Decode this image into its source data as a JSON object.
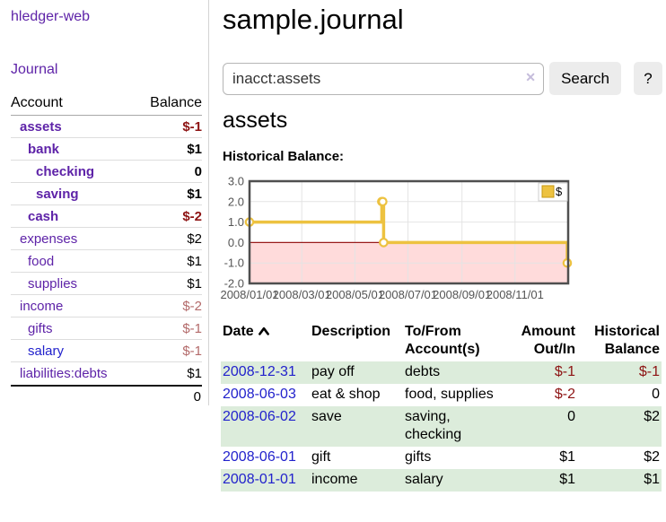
{
  "colors": {
    "purple": "#5e23a8",
    "blue": "#2222cc",
    "neg_strong": "#8d1313",
    "neg_dim": "#b36a6a",
    "row_green": "#dcecdb",
    "button_bg": "#ececec",
    "clear_icon_lavender": "#c5bcdb",
    "chart_line": "#edc240",
    "chart_fill_negative": "#ffdbdb",
    "chart_zero_line": "#991b1b",
    "chart_border": "#4f4f4f",
    "chart_grid": "#e4e4e4",
    "chart_label": "#545454"
  },
  "sidebar": {
    "brand": "hledger-web",
    "nav_journal": "Journal",
    "accounts": {
      "header_account": "Account",
      "header_balance": "Balance",
      "rows": [
        {
          "name": "assets",
          "balance": "$-1",
          "depth": 1,
          "bold": true,
          "balance_style": "neg-strong",
          "link_style": "purple"
        },
        {
          "name": "bank",
          "balance": "$1",
          "depth": 2,
          "bold": true,
          "balance_style": "normal",
          "link_style": "purple"
        },
        {
          "name": "checking",
          "balance": "0",
          "depth": 3,
          "bold": true,
          "balance_style": "normal",
          "link_style": "purple"
        },
        {
          "name": "saving",
          "balance": "$1",
          "depth": 3,
          "bold": true,
          "balance_style": "normal",
          "link_style": "purple"
        },
        {
          "name": "cash",
          "balance": "$-2",
          "depth": 2,
          "bold": true,
          "balance_style": "neg-strong",
          "link_style": "purple"
        },
        {
          "name": "expenses",
          "balance": "$2",
          "depth": 1,
          "bold": false,
          "balance_style": "normal",
          "link_style": "purple"
        },
        {
          "name": "food",
          "balance": "$1",
          "depth": 2,
          "bold": false,
          "balance_style": "normal",
          "link_style": "purple"
        },
        {
          "name": "supplies",
          "balance": "$1",
          "depth": 2,
          "bold": false,
          "balance_style": "normal",
          "link_style": "purple"
        },
        {
          "name": "income",
          "balance": "$-2",
          "depth": 1,
          "bold": false,
          "balance_style": "neg-dim",
          "link_style": "purple"
        },
        {
          "name": "gifts",
          "balance": "$-1",
          "depth": 2,
          "bold": false,
          "balance_style": "neg-dim",
          "link_style": "purple"
        },
        {
          "name": "salary",
          "balance": "$-1",
          "depth": 2,
          "bold": false,
          "balance_style": "neg-dim",
          "link_style": "blue"
        },
        {
          "name": "liabilities:debts",
          "balance": "$1",
          "depth": 1,
          "bold": false,
          "balance_style": "normal",
          "link_style": "purple"
        }
      ],
      "total": "0"
    }
  },
  "main": {
    "title": "sample.journal",
    "search": {
      "value": "inacct:assets",
      "clear_icon": "✕",
      "button_label": "Search",
      "help_label": "?"
    },
    "account_heading": "assets",
    "chart_title": "Historical Balance:"
  },
  "chart_data": {
    "type": "line",
    "step": true,
    "title": "Historical Balance",
    "series": [
      {
        "name": "$",
        "x": [
          "2008-01-01",
          "2008-06-01",
          "2008-06-02",
          "2008-06-03",
          "2008-12-31"
        ],
        "values": [
          1,
          2,
          2,
          0,
          -1
        ]
      }
    ],
    "xaxis": {
      "start": "2008-01-01",
      "end": "2009-01-01",
      "ticks": [
        "2008/01/01",
        "2008/03/01",
        "2008/05/01",
        "2008/07/01",
        "2008/09/01",
        "2008/11/01"
      ]
    },
    "yaxis": {
      "min": -2,
      "max": 3,
      "ticks": [
        "3.0",
        "2.0",
        "1.0",
        "0.0",
        "-1.0",
        "-2.0"
      ]
    },
    "legend": {
      "label": "$",
      "position": "top-right"
    },
    "negative_region_shaded": true,
    "grid": true
  },
  "register": {
    "headers": {
      "date": "Date",
      "description": "Description",
      "accounts_line1": "To/From",
      "accounts_line2": "Account(s)",
      "amount_line1": "Amount",
      "amount_line2": "Out/In",
      "balance_line1": "Historical",
      "balance_line2": "Balance"
    },
    "rows": [
      {
        "date": "2008-12-31",
        "description": "pay off",
        "accounts": "debts",
        "amount": "$-1",
        "amount_style": "neg-strong",
        "balance": "$-1",
        "balance_style": "neg-strong",
        "shaded": true
      },
      {
        "date": "2008-06-03",
        "description": "eat & shop",
        "accounts": "food, supplies",
        "amount": "$-2",
        "amount_style": "neg-strong",
        "balance": "0",
        "balance_style": "normal",
        "shaded": false
      },
      {
        "date": "2008-06-02",
        "description": "save",
        "accounts": "saving, checking",
        "amount": "0",
        "amount_style": "normal",
        "balance": "$2",
        "balance_style": "normal",
        "shaded": true
      },
      {
        "date": "2008-06-01",
        "description": "gift",
        "accounts": "gifts",
        "amount": "$1",
        "amount_style": "normal",
        "balance": "$2",
        "balance_style": "normal",
        "shaded": false
      },
      {
        "date": "2008-01-01",
        "description": "income",
        "accounts": "salary",
        "amount": "$1",
        "amount_style": "normal",
        "balance": "$1",
        "balance_style": "normal",
        "shaded": true
      }
    ]
  }
}
